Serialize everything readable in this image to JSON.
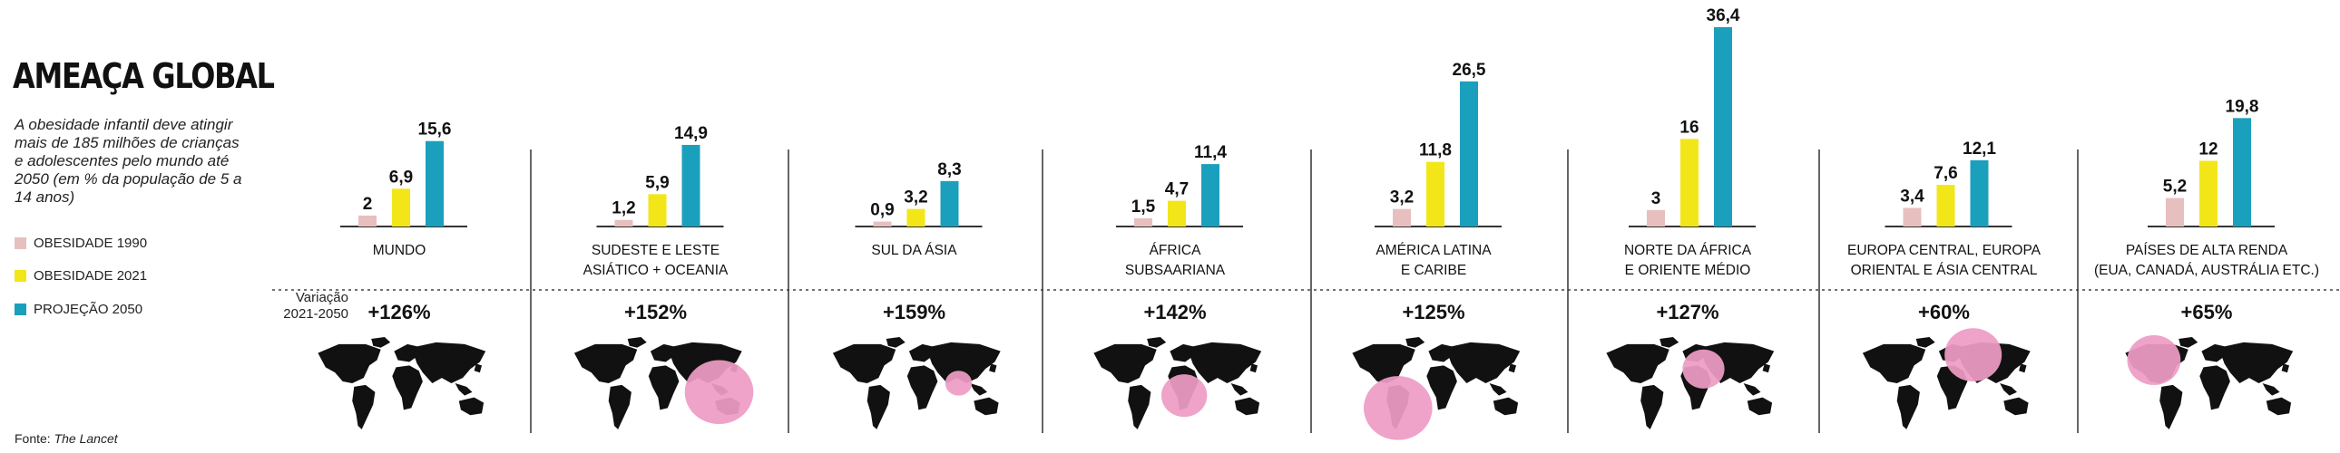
{
  "title": "AMEAÇA GLOBAL",
  "subtitle": "A obesidade infantil deve atingir mais de 185 milhões de crianças e adolescentes pelo mundo até 2050 (em % da população de 5 a 14 anos)",
  "variation_label": "Variação 2021-2050",
  "source": {
    "prefix": "Fonte: ",
    "name": "The Lancet"
  },
  "colors": {
    "obesity_1990": "#e8bfbf",
    "obesity_2021": "#f2e619",
    "projection_2050": "#1aa0bd",
    "map_land": "#111111",
    "map_highlight": "#ee9cc4",
    "axis": "#333333"
  },
  "chart_data": {
    "type": "bar",
    "series": [
      {
        "name": "OBESIDADE 1990",
        "values": [
          2,
          1.2,
          0.9,
          1.5,
          3.2,
          3,
          3.4,
          5.2
        ]
      },
      {
        "name": "OBESIDADE 2021",
        "values": [
          6.9,
          5.9,
          3.2,
          4.7,
          11.8,
          16,
          7.6,
          12
        ]
      },
      {
        "name": "PROJEÇÃO  2050",
        "values": [
          15.6,
          14.9,
          8.3,
          11.4,
          26.5,
          36.4,
          12.1,
          19.8
        ]
      }
    ],
    "panels": [
      {
        "label_lines": [
          "MUNDO"
        ],
        "labels": [
          "2",
          "6,9",
          "15,6"
        ],
        "variation": "+126%",
        "highlight": "world"
      },
      {
        "label_lines": [
          "SUDESTE E LESTE",
          "ASIÁTICO + OCEANIA"
        ],
        "labels": [
          "1,2",
          "5,9",
          "14,9"
        ],
        "variation": "+152%",
        "highlight": "east-asia-oceania"
      },
      {
        "label_lines": [
          "SUL DA ÁSIA"
        ],
        "labels": [
          "0,9",
          "3,2",
          "8,3"
        ],
        "variation": "+159%",
        "highlight": "south-asia"
      },
      {
        "label_lines": [
          "ÁFRICA",
          "SUBSAARIANA"
        ],
        "labels": [
          "1,5",
          "4,7",
          "11,4"
        ],
        "variation": "+142%",
        "highlight": "sub-saharan-africa"
      },
      {
        "label_lines": [
          "AMÉRICA LATINA",
          "E CARIBE"
        ],
        "labels": [
          "3,2",
          "11,8",
          "26,5"
        ],
        "variation": "+125%",
        "highlight": "latin-america"
      },
      {
        "label_lines": [
          "NORTE DA ÁFRICA",
          "E ORIENTE MÉDIO"
        ],
        "labels": [
          "3",
          "16",
          "36,4"
        ],
        "variation": "+127%",
        "highlight": "north-africa-middle-east"
      },
      {
        "label_lines": [
          "EUROPA CENTRAL, EUROPA",
          "ORIENTAL E ÁSIA CENTRAL"
        ],
        "labels": [
          "3,4",
          "7,6",
          "12,1"
        ],
        "variation": "+60%",
        "highlight": "europe-central-asia"
      },
      {
        "label_lines": [
          "PAÍSES DE ALTA RENDA",
          "(EUA, CANADÁ, AUSTRÁLIA ETC.)"
        ],
        "labels": [
          "5,2",
          "12",
          "19,8"
        ],
        "variation": "+65%",
        "highlight": "high-income"
      }
    ],
    "ylim": [
      0,
      36.4
    ],
    "legend": "left"
  }
}
